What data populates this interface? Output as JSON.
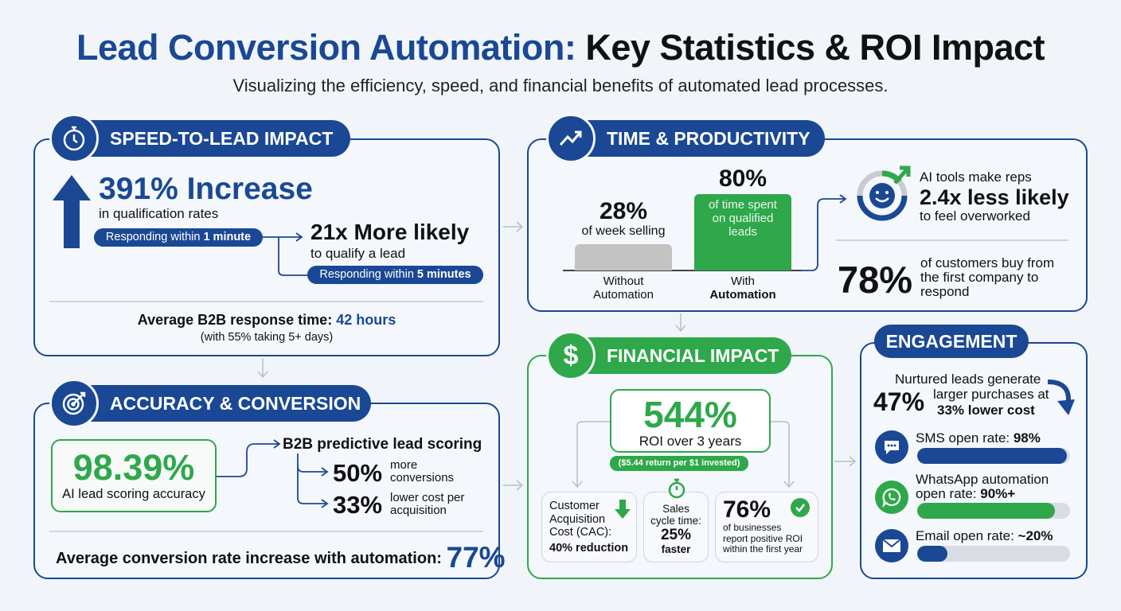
{
  "title": {
    "part1": "Lead Conversion Automation:",
    "part2": "Key Statistics & ROI Impact"
  },
  "subtitle": "Visualizing the efficiency, speed, and financial benefits of automated lead processes.",
  "colors": {
    "navy": "#1a4894",
    "green": "#2ea84a",
    "gray": "#c3c3c3",
    "background": "#f1f5fa"
  },
  "speed": {
    "header": "SPEED-TO-LEAD IMPACT",
    "icon": "stopwatch-icon",
    "big": "391% Increase",
    "big_sub": "in qualification rates",
    "pill1_a": "Responding within ",
    "pill1_b": "1 minute",
    "likely": "21x More likely",
    "likely_sub": "to qualify a lead",
    "pill2_a": "Responding within ",
    "pill2_b": "5 minutes",
    "avg_label": "Average B2B response time: ",
    "avg_value": "42 hours",
    "avg_note": "(with 55% taking 5+ days)"
  },
  "accuracy": {
    "header": "ACCURACY & CONVERSION",
    "icon": "target-icon",
    "value": "98.39%",
    "value_label": "AI lead scoring accuracy",
    "scoring_title": "B2B predictive lead scoring",
    "items": [
      {
        "value": "50%",
        "l1": "more",
        "l2": "conversions"
      },
      {
        "value": "33%",
        "l1": "lower cost per",
        "l2": "acquisition"
      }
    ],
    "avg_label": "Average conversion rate increase with automation: ",
    "avg_value": "77%"
  },
  "time": {
    "header": "TIME & PRODUCTIVITY",
    "icon": "trending-up-icon",
    "without": {
      "value": "28%",
      "desc": "of week selling",
      "l1": "Without",
      "l2": "Automation",
      "percent": 28
    },
    "with": {
      "value": "80%",
      "d1": "of time spent",
      "d2": "on qualified",
      "d3": "leads",
      "l1": "With",
      "l2": "Automation",
      "percent": 80
    },
    "ai_l1": "AI tools make reps",
    "ai_big": "2.4x less likely",
    "ai_l3": "to feel overworked",
    "cust_value": "78%",
    "cust_l1": "of customers buy from",
    "cust_l2": "the first company to",
    "cust_l3": "respond"
  },
  "financial": {
    "header": "FINANCIAL IMPACT",
    "icon": "dollar-icon",
    "roi": "544%",
    "roi_label": "ROI over 3 years",
    "roi_note": "($5.44 return per $1 invested)",
    "cac": {
      "l1": "Customer",
      "l2": "Acquisition",
      "l3": "Cost (CAC):",
      "value": "40% reduction"
    },
    "cycle": {
      "l1": "Sales",
      "l2": "cycle time:",
      "value": "25%",
      "l4": "faster"
    },
    "positive": {
      "value": "76%",
      "l1": "of businesses",
      "l2": "report positive ROI",
      "l3": "within the first year"
    }
  },
  "engagement": {
    "header": "ENGAGEMENT",
    "nurture_l1": "Nurtured leads generate",
    "nurture_value": "47%",
    "nurture_l2": "larger purchases at",
    "nurture_l3": "33% lower cost",
    "channels": [
      {
        "label": "SMS open rate: ",
        "value": "98%",
        "percent": 98,
        "icon": "chat-icon",
        "color": "#1a4894"
      },
      {
        "label1": "WhatsApp automation",
        "label": "open rate: ",
        "value": "90%+",
        "percent": 90,
        "icon": "whatsapp-icon",
        "color": "#2ea84a"
      },
      {
        "label": "Email open rate: ",
        "value": "~20%",
        "percent": 20,
        "icon": "mail-icon",
        "color": "#1a4894"
      }
    ]
  }
}
